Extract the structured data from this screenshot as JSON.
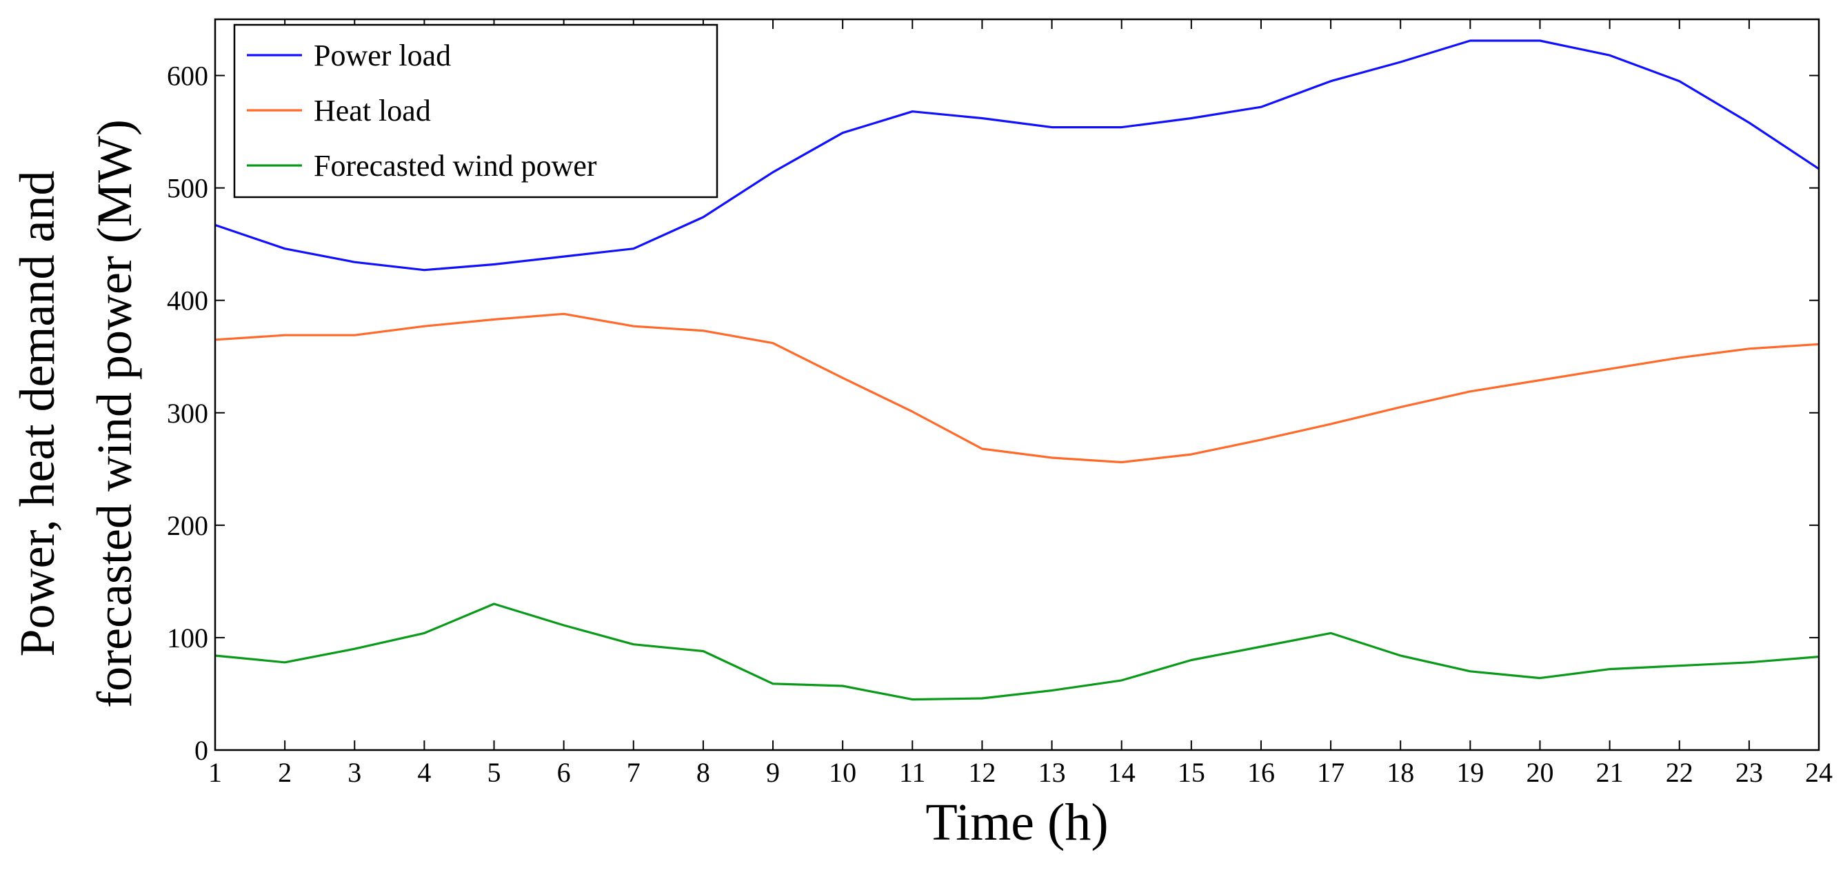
{
  "chart_data": {
    "type": "line",
    "title": "",
    "xlabel": "Time (h)",
    "ylabel_line1": "Power, heat demand and",
    "ylabel_line2": "forecasted wind power (MW)",
    "xlim": [
      1,
      24
    ],
    "ylim": [
      0,
      650
    ],
    "xticks": [
      1,
      2,
      3,
      4,
      5,
      6,
      7,
      8,
      9,
      10,
      11,
      12,
      13,
      14,
      15,
      16,
      17,
      18,
      19,
      20,
      21,
      22,
      23,
      24
    ],
    "yticks": [
      0,
      100,
      200,
      300,
      400,
      500,
      600
    ],
    "grid": false,
    "legend_position": "top-left",
    "x": [
      1,
      2,
      3,
      4,
      5,
      6,
      7,
      8,
      9,
      10,
      11,
      12,
      13,
      14,
      15,
      16,
      17,
      18,
      19,
      20,
      21,
      22,
      23,
      24
    ],
    "series": [
      {
        "name": "Power load",
        "color": "#1010ff",
        "values": [
          467,
          446,
          434,
          427,
          432,
          439,
          446,
          474,
          514,
          549,
          568,
          562,
          554,
          554,
          562,
          572,
          595,
          612,
          631,
          631,
          618,
          595,
          558,
          517
        ]
      },
      {
        "name": "Heat load",
        "color": "#ff6a2a",
        "values": [
          365,
          369,
          369,
          377,
          383,
          388,
          377,
          373,
          362,
          331,
          301,
          268,
          260,
          256,
          263,
          276,
          290,
          305,
          319,
          329,
          339,
          349,
          357,
          361
        ]
      },
      {
        "name": "Forecasted wind power",
        "color": "#0a9a1a",
        "values": [
          84,
          78,
          90,
          104,
          130,
          111,
          94,
          88,
          59,
          57,
          45,
          46,
          53,
          62,
          80,
          92,
          104,
          84,
          70,
          64,
          72,
          75,
          78,
          83
        ]
      }
    ]
  }
}
